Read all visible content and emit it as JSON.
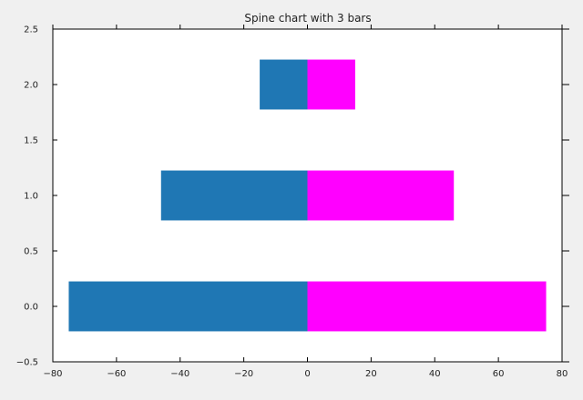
{
  "chart_data": {
    "type": "bar",
    "orientation": "horizontal",
    "title": "Spine chart with 3 bars",
    "xlabel": "",
    "ylabel": "",
    "xlim": [
      -80,
      80
    ],
    "ylim": [
      -0.5,
      2.5
    ],
    "xticks": [
      -80,
      -60,
      -40,
      -20,
      0,
      20,
      40,
      60,
      80
    ],
    "yticks": [
      -0.5,
      0.0,
      0.5,
      1.0,
      1.5,
      2.0,
      2.5
    ],
    "xtick_labels": [
      "−80",
      "−60",
      "−40",
      "−20",
      "0",
      "20",
      "40",
      "60",
      "80"
    ],
    "ytick_labels": [
      "−0.5",
      "0.0",
      "0.5",
      "1.0",
      "1.5",
      "2.0",
      "2.5"
    ],
    "grid": false,
    "categories": [
      0,
      1,
      2
    ],
    "series": [
      {
        "values": [
          -75,
          -46,
          -15
        ],
        "color": "#1f77b4"
      },
      {
        "values": [
          75,
          46,
          15
        ],
        "color": "#ff00ff"
      }
    ]
  }
}
